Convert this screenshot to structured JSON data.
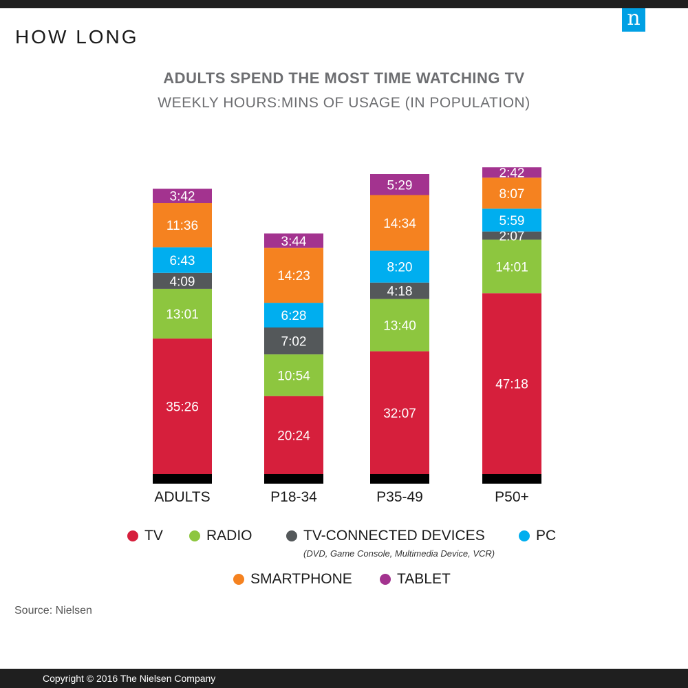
{
  "header": {
    "section_title": "HOW LONG",
    "logo_letter": "n",
    "logo_color": "#00a0e4"
  },
  "chart_data": {
    "type": "bar",
    "stacked": true,
    "title": "ADULTS SPEND THE MOST TIME WATCHING TV",
    "subtitle": "WEEKLY HOURS:MINS OF USAGE (IN POPULATION)",
    "categories": [
      "ADULTS",
      "P18-34",
      "P35-49",
      "P50+"
    ],
    "series": [
      {
        "name": "TV",
        "color": "#d61f3c",
        "values": [
          35.433,
          20.4,
          32.117,
          47.3
        ],
        "labels": [
          "35:26",
          "20:24",
          "32:07",
          "47:18"
        ]
      },
      {
        "name": "RADIO",
        "color": "#8dc63f",
        "values": [
          13.017,
          10.9,
          13.667,
          14.017
        ],
        "labels": [
          "13:01",
          "10:54",
          "13:40",
          "14:01"
        ]
      },
      {
        "name": "TV-CONNECTED DEVICES",
        "color": "#54585a",
        "values": [
          4.15,
          7.033,
          4.3,
          2.117
        ],
        "labels": [
          "4:09",
          "7:02",
          "4:18",
          "2:07"
        ]
      },
      {
        "name": "PC",
        "color": "#00aeef",
        "values": [
          6.717,
          6.467,
          8.333,
          5.983
        ],
        "labels": [
          "6:43",
          "6:28",
          "8:20",
          "5:59"
        ]
      },
      {
        "name": "SMARTPHONE",
        "color": "#f58220",
        "values": [
          11.6,
          14.383,
          14.567,
          8.117
        ],
        "labels": [
          "11:36",
          "14:23",
          "14:34",
          "8:07"
        ]
      },
      {
        "name": "TABLET",
        "color": "#a3338f",
        "values": [
          3.7,
          3.733,
          5.483,
          2.7
        ],
        "labels": [
          "3:42",
          "3:44",
          "5:29",
          "2:42"
        ]
      }
    ],
    "legend_note": "(DVD, Game Console, Multimedia Device, VCR)",
    "legend_placement": "bottom"
  },
  "footer": {
    "source": "Source: Nielsen",
    "copyright": "Copyright © 2016 The Nielsen Company"
  }
}
